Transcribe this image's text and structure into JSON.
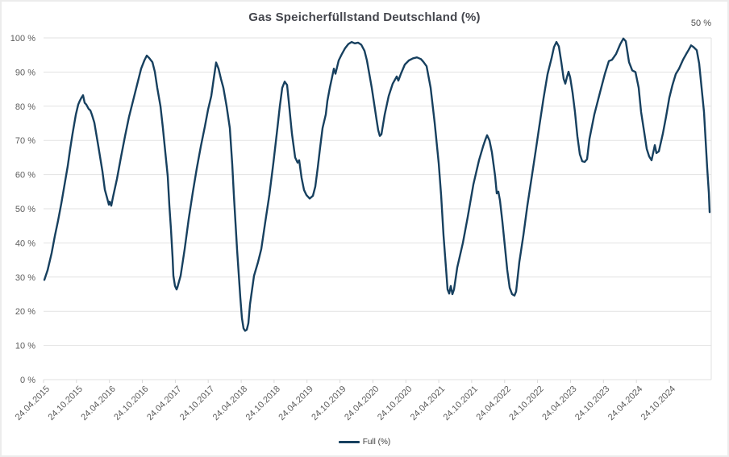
{
  "chart_data": {
    "type": "line",
    "title": "Gas Speicherfüllstand Deutschland (%)",
    "end_value_label": "50 %",
    "legend_position": "bottom",
    "grid": "horizontal",
    "ylim": [
      0,
      100
    ],
    "y_ticks": [
      "0 %",
      "10 %",
      "20 %",
      "30 %",
      "40 %",
      "50 %",
      "60 %",
      "70 %",
      "80 %",
      "90 %",
      "100 %"
    ],
    "x_tick_labels": [
      "24.04.2015",
      "24.10.2015",
      "24.04.2016",
      "24.10.2016",
      "24.04.2017",
      "24.10.2017",
      "24.04.2018",
      "24.10.2018",
      "24.04.2019",
      "24.10.2019",
      "24.04.2020",
      "24.10.2020",
      "24.04.2021",
      "24.10.2021",
      "24.04.2022",
      "24.10.2022",
      "24.04.2023",
      "24.10.2023",
      "24.04.2024",
      "24.10.2024"
    ],
    "colors": {
      "line": "#17405f",
      "grid": "#e2e2e2",
      "tick": "#d9d9d9",
      "axis_text": "#5d5d5d",
      "title_text": "#44464d"
    },
    "x_encoding": "points are [x_position_px_along_time_axis, fill_percent]; axis ticks are evenly spaced half-year dates",
    "series": [
      {
        "name": "Full (%)",
        "color": "#17405f",
        "points": [
          [
            53,
            29.2
          ],
          [
            57,
            32
          ],
          [
            62,
            37
          ],
          [
            66,
            42
          ],
          [
            70,
            46.5
          ],
          [
            74,
            51.5
          ],
          [
            78,
            57
          ],
          [
            82,
            62.5
          ],
          [
            85,
            67.5
          ],
          [
            88,
            72
          ],
          [
            92,
            77.5
          ],
          [
            95,
            80.5
          ],
          [
            97,
            81.6
          ],
          [
            99,
            82.5
          ],
          [
            101,
            83.2
          ],
          [
            103,
            81
          ],
          [
            105,
            80.5
          ],
          [
            108,
            79.2
          ],
          [
            110,
            78.8
          ],
          [
            112,
            77.5
          ],
          [
            115,
            75.2
          ],
          [
            120,
            68.2
          ],
          [
            125,
            61
          ],
          [
            128,
            55.6
          ],
          [
            131,
            53
          ],
          [
            133,
            51.2
          ],
          [
            134,
            52.1
          ],
          [
            136,
            50.9
          ],
          [
            138,
            53.3
          ],
          [
            143,
            58.7
          ],
          [
            148,
            65.1
          ],
          [
            153,
            71.2
          ],
          [
            158,
            76.9
          ],
          [
            163,
            81.6
          ],
          [
            168,
            86.3
          ],
          [
            173,
            91
          ],
          [
            177,
            93.4
          ],
          [
            180,
            94.8
          ],
          [
            183,
            94.1
          ],
          [
            187,
            92.9
          ],
          [
            190,
            90.1
          ],
          [
            193,
            85.4
          ],
          [
            197,
            80
          ],
          [
            200,
            73.6
          ],
          [
            203,
            66.5
          ],
          [
            206,
            59.5
          ],
          [
            208,
            51
          ],
          [
            210,
            44
          ],
          [
            212,
            35.8
          ],
          [
            213,
            30.4
          ],
          [
            215,
            27.4
          ],
          [
            217,
            26.4
          ],
          [
            218,
            27
          ],
          [
            222,
            30.4
          ],
          [
            227,
            38.2
          ],
          [
            232,
            47
          ],
          [
            237,
            54.7
          ],
          [
            242,
            61.8
          ],
          [
            247,
            68.2
          ],
          [
            252,
            74
          ],
          [
            256,
            79
          ],
          [
            260,
            83
          ],
          [
            263,
            88
          ],
          [
            266,
            92.8
          ],
          [
            269,
            91
          ],
          [
            272,
            88
          ],
          [
            275,
            85.4
          ],
          [
            279,
            80
          ],
          [
            283,
            73.6
          ],
          [
            286,
            63
          ],
          [
            288,
            54
          ],
          [
            290,
            46
          ],
          [
            292,
            38
          ],
          [
            294,
            31
          ],
          [
            296,
            24
          ],
          [
            298,
            18
          ],
          [
            300,
            15
          ],
          [
            302,
            14.3
          ],
          [
            304,
            14.6
          ],
          [
            306,
            16.5
          ],
          [
            308,
            22
          ],
          [
            313,
            30.4
          ],
          [
            318,
            34.4
          ],
          [
            322,
            38.2
          ],
          [
            327,
            46.2
          ],
          [
            332,
            54
          ],
          [
            337,
            63.4
          ],
          [
            342,
            73.6
          ],
          [
            345,
            80
          ],
          [
            348,
            85.4
          ],
          [
            351,
            87.2
          ],
          [
            354,
            86.2
          ],
          [
            356,
            81.6
          ],
          [
            360,
            72
          ],
          [
            364,
            65
          ],
          [
            367,
            63.5
          ],
          [
            369,
            64.2
          ],
          [
            372,
            59
          ],
          [
            375,
            55.5
          ],
          [
            378,
            54
          ],
          [
            382,
            53
          ],
          [
            386,
            53.8
          ],
          [
            389,
            56.5
          ],
          [
            392,
            62
          ],
          [
            395,
            68
          ],
          [
            398,
            73.6
          ],
          [
            402,
            77.6
          ],
          [
            404,
            81.6
          ],
          [
            407,
            85.4
          ],
          [
            410,
            88.7
          ],
          [
            412,
            91
          ],
          [
            414,
            89.5
          ],
          [
            418,
            93.4
          ],
          [
            422,
            95.3
          ],
          [
            426,
            97
          ],
          [
            430,
            98.2
          ],
          [
            434,
            98.8
          ],
          [
            438,
            98.4
          ],
          [
            442,
            98.6
          ],
          [
            446,
            98
          ],
          [
            450,
            96.2
          ],
          [
            453,
            93.4
          ],
          [
            456,
            89.4
          ],
          [
            459,
            85.4
          ],
          [
            462,
            80.7
          ],
          [
            465,
            76
          ],
          [
            467,
            73
          ],
          [
            469,
            71.3
          ],
          [
            471,
            71.8
          ],
          [
            475,
            77.5
          ],
          [
            480,
            83
          ],
          [
            485,
            86.6
          ],
          [
            490,
            88.7
          ],
          [
            492,
            87.5
          ],
          [
            495,
            89.4
          ],
          [
            500,
            92.2
          ],
          [
            505,
            93.4
          ],
          [
            510,
            94
          ],
          [
            515,
            94.3
          ],
          [
            520,
            93.8
          ],
          [
            523,
            93
          ],
          [
            527,
            91.7
          ],
          [
            532,
            85.4
          ],
          [
            537,
            75.2
          ],
          [
            542,
            63.4
          ],
          [
            545,
            54
          ],
          [
            548,
            42.2
          ],
          [
            551,
            32.8
          ],
          [
            553,
            26.4
          ],
          [
            555,
            25.2
          ],
          [
            557,
            27.4
          ],
          [
            559,
            25
          ],
          [
            561,
            26.4
          ],
          [
            565,
            32.8
          ],
          [
            572,
            40
          ],
          [
            578,
            47.6
          ],
          [
            585,
            57.1
          ],
          [
            592,
            64.2
          ],
          [
            597,
            68.2
          ],
          [
            600,
            70.3
          ],
          [
            602,
            71.5
          ],
          [
            605,
            70
          ],
          [
            608,
            66.5
          ],
          [
            612,
            59.5
          ],
          [
            614,
            54.5
          ],
          [
            616,
            55
          ],
          [
            618,
            52.4
          ],
          [
            621,
            46.2
          ],
          [
            624,
            39.2
          ],
          [
            627,
            32.1
          ],
          [
            630,
            26.9
          ],
          [
            633,
            25
          ],
          [
            636,
            24.6
          ],
          [
            638,
            25.8
          ],
          [
            642,
            34.4
          ],
          [
            647,
            42.2
          ],
          [
            652,
            51
          ],
          [
            657,
            58.7
          ],
          [
            662,
            66.5
          ],
          [
            667,
            74.5
          ],
          [
            672,
            82.3
          ],
          [
            677,
            89.4
          ],
          [
            682,
            94.1
          ],
          [
            685,
            97.3
          ],
          [
            688,
            98.8
          ],
          [
            691,
            97.5
          ],
          [
            694,
            93
          ],
          [
            697,
            88
          ],
          [
            699,
            86.6
          ],
          [
            701,
            88.5
          ],
          [
            703,
            90.1
          ],
          [
            705,
            88.5
          ],
          [
            708,
            84
          ],
          [
            711,
            78.3
          ],
          [
            714,
            71.2
          ],
          [
            717,
            66
          ],
          [
            720,
            63.9
          ],
          [
            723,
            63.7
          ],
          [
            726,
            64.5
          ],
          [
            729,
            70.5
          ],
          [
            735,
            77.6
          ],
          [
            742,
            84
          ],
          [
            748,
            89.4
          ],
          [
            753,
            93.2
          ],
          [
            757,
            93.6
          ],
          [
            762,
            95.3
          ],
          [
            767,
            98.1
          ],
          [
            771,
            99.8
          ],
          [
            774,
            99
          ],
          [
            778,
            92.9
          ],
          [
            782,
            90.5
          ],
          [
            786,
            90
          ],
          [
            790,
            85.4
          ],
          [
            793,
            78.3
          ],
          [
            797,
            72.2
          ],
          [
            800,
            67.5
          ],
          [
            803,
            65.3
          ],
          [
            806,
            64.2
          ],
          [
            810,
            68.6
          ],
          [
            812,
            66.3
          ],
          [
            815,
            66.8
          ],
          [
            820,
            72
          ],
          [
            824,
            77
          ],
          [
            828,
            82.5
          ],
          [
            832,
            86.3
          ],
          [
            836,
            89.4
          ],
          [
            840,
            91
          ],
          [
            845,
            93.6
          ],
          [
            849,
            95.3
          ],
          [
            852,
            96.5
          ],
          [
            855,
            97.8
          ],
          [
            858,
            97.3
          ],
          [
            862,
            96.4
          ],
          [
            865,
            92.5
          ],
          [
            868,
            85.4
          ],
          [
            871,
            78.3
          ],
          [
            873,
            70
          ],
          [
            875,
            61.8
          ],
          [
            877,
            54.7
          ],
          [
            878,
            49
          ]
        ]
      }
    ]
  }
}
